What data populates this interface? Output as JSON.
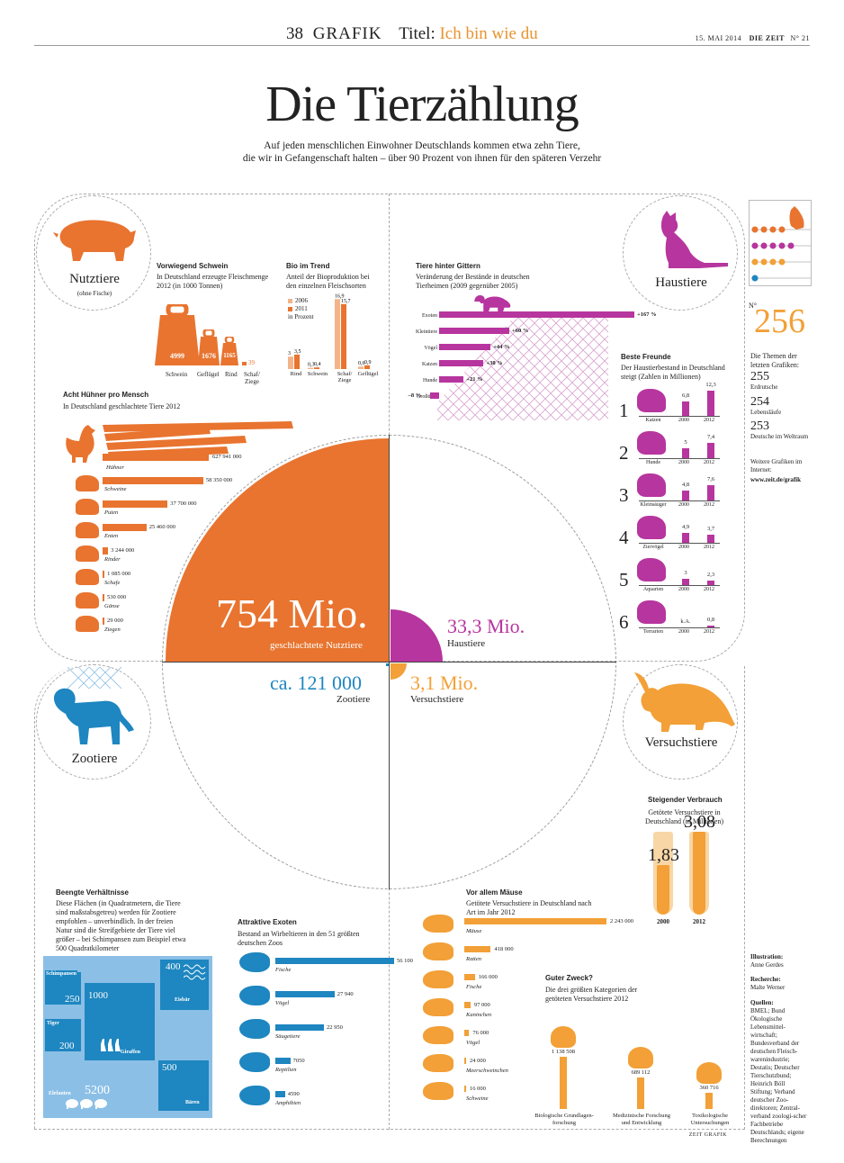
{
  "header": {
    "page_no": "38",
    "section": "GRAFIK",
    "title_prefix": "Titel:",
    "title_highlight": "Ich bin wie du",
    "date": "15. MAI 2014",
    "paper": "DIE ZEIT",
    "issue": "N° 21"
  },
  "headline": "Die Tierzählung",
  "subtitle": [
    "Auf jeden menschlichen Einwohner Deutschlands kommen etwa zehn Tiere,",
    "die wir in Gefangenschaft halten – über 90 Prozent von ihnen für den späteren Verzehr"
  ],
  "colors": {
    "orange": "#e8742f",
    "magenta": "#b7359e",
    "blue": "#1e86c0",
    "amber": "#f2a037",
    "light_blue": "#8bbfe6"
  },
  "nutztiere": {
    "label": "Nutztiere",
    "note": "(ohne Fische)",
    "big_value": "754 Mio.",
    "big_caption": "geschlachtete Nutztiere"
  },
  "haustiere": {
    "label": "Haustiere",
    "big_value": "33,3 Mio.",
    "big_caption": "Haustiere"
  },
  "zootiere": {
    "label": "Zootiere",
    "big_value": "ca. 121 000",
    "big_caption": "Zootiere"
  },
  "versuchstiere": {
    "label": "Versuchstiere",
    "big_value": "3,1 Mio.",
    "big_caption": "Versuchstiere"
  },
  "schwein": {
    "title": "Vorwiegend Schwein",
    "desc": "In Deutschland erzeugte Fleischmenge 2012 (in 1000 Tonnen)",
    "items": [
      {
        "label": "Schwein",
        "value": "4999"
      },
      {
        "label": "Geflügel",
        "value": "1676"
      },
      {
        "label": "Rind",
        "value": "1165"
      },
      {
        "label": "Schaf/ Ziege",
        "value": "39"
      }
    ]
  },
  "bio": {
    "title": "Bio im Trend",
    "desc": "Anteil der Bioproduktion bei den einzelnen Fleischsorten",
    "legend": [
      "2006",
      "2011",
      "in Prozent"
    ],
    "groups": [
      {
        "label": "Rind",
        "v2006": "3",
        "v2011": "3,5",
        "a": 3,
        "b": 3.5
      },
      {
        "label": "Schwein",
        "v2006": "0,3",
        "v2011": "0,4",
        "a": 0.3,
        "b": 0.4
      },
      {
        "label": "Schaf/ Ziege",
        "v2006": "16,9",
        "v2011": "15,7",
        "a": 16.9,
        "b": 15.7
      },
      {
        "label": "Geflügel",
        "v2006": "0,6",
        "v2011": "0,9",
        "a": 0.6,
        "b": 0.9
      }
    ]
  },
  "gitter": {
    "title": "Tiere hinter Gittern",
    "desc": "Veränderung der Bestände in deutschen Tierheimen (2009 gegenüber 2005)",
    "rows": [
      {
        "label": "Exoten",
        "value": "+167 %",
        "pct": 167
      },
      {
        "label": "Kleintiere",
        "value": "+60 %",
        "pct": 60
      },
      {
        "label": "Vögel",
        "value": "+44 %",
        "pct": 44
      },
      {
        "label": "Katzen",
        "value": "+38 %",
        "pct": 38
      },
      {
        "label": "Hunde",
        "value": "+21 %",
        "pct": 21
      },
      {
        "label": "Großtiere",
        "value": "–8 %",
        "pct": -8
      }
    ]
  },
  "huehner": {
    "title": "Acht Hühner pro Mensch",
    "desc": "In Deutschland geschlachtete Tiere 2012",
    "rows": [
      {
        "label": "Hühner",
        "value": "627 941 000",
        "n": 627941000
      },
      {
        "label": "Schweine",
        "value": "58 350 000",
        "n": 58350000
      },
      {
        "label": "Puten",
        "value": "37 700 000",
        "n": 37700000
      },
      {
        "label": "Enten",
        "value": "25 460 000",
        "n": 25460000
      },
      {
        "label": "Rinder",
        "value": "3 244 000",
        "n": 3244000
      },
      {
        "label": "Schafe",
        "value": "1 085 000",
        "n": 1085000
      },
      {
        "label": "Gänse",
        "value": "530 000",
        "n": 530000
      },
      {
        "label": "Ziegen",
        "value": "29 000",
        "n": 29000
      }
    ]
  },
  "freunde": {
    "title": "Beste Freunde",
    "desc": "Der Haustierbestand in Deutschland steigt (Zahlen in Millionen)",
    "years": [
      "2000",
      "2012"
    ],
    "rows": [
      {
        "rank": "1",
        "label": "Katzen",
        "v2000": "6,8",
        "v2012": "12,3",
        "a": 6.8,
        "b": 12.3
      },
      {
        "rank": "2",
        "label": "Hunde",
        "v2000": "5",
        "v2012": "7,4",
        "a": 5,
        "b": 7.4
      },
      {
        "rank": "3",
        "label": "Kleinsäuger",
        "v2000": "4,8",
        "v2012": "7,6",
        "a": 4.8,
        "b": 7.6
      },
      {
        "rank": "4",
        "label": "Ziervögel",
        "v2000": "4,9",
        "v2012": "3,7",
        "a": 4.9,
        "b": 3.7
      },
      {
        "rank": "5",
        "label": "Aquarien",
        "v2000": "3",
        "v2012": "2,3",
        "a": 3,
        "b": 2.3
      },
      {
        "rank": "6",
        "label": "Terrarien",
        "v2000": "k.A.",
        "v2012": "0,8",
        "a": 0,
        "b": 0.8
      }
    ]
  },
  "sidebar": {
    "no_sign": "N°",
    "number": "256",
    "intro": "Die Themen der letzten Grafiken:",
    "items": [
      {
        "n": "255",
        "t": "Erdrutsche"
      },
      {
        "n": "254",
        "t": "Lebensläufe"
      },
      {
        "n": "253",
        "t": "Deutsche im Weltraum"
      }
    ],
    "more": "Weitere Grafiken im Internet:",
    "url": "www.zeit.de/grafik",
    "illu_h": "Illustration:",
    "illu": "Anne Gerdes",
    "rech_h": "Recherche:",
    "rech": "Malte Werner",
    "quellen_h": "Quellen:",
    "quellen": "BMEL; Bund Ökologische Lebensmittel-wirtschaft; Bundesverband der deutschen Fleisch-warenindustrie; Destatis; Deutscher Tierschutzbund; Heinrich Böll Stiftung; Verband deutscher Zoo-direktoren; Zentral-verband zoologi-scher Fachbetriebe Deutschlands; eigene Berechnungen"
  },
  "verbrauch": {
    "title": "Steigender Verbrauch",
    "desc": "Getötete Versuchstiere in Deutschland (in Millionen)",
    "items": [
      {
        "year": "2000",
        "value": "1,83",
        "n": 1.83
      },
      {
        "year": "2012",
        "value": "3,08",
        "n": 3.08
      }
    ]
  },
  "verhaeltnisse": {
    "title": "Beengte Verhältnisse",
    "desc": "Diese Flächen (in Quadratmetern, die Tiere sind maßstabsgetreu) werden für Zootiere empfohlen – unverbindlich. In der freien Natur sind die Streifgebiete der Tiere viel größer – bei Schimpansen zum Beispiel etwa 500 Quadratkilometer",
    "areas": [
      {
        "label": "Schimpansen",
        "value": "250"
      },
      {
        "label": "Giraffen",
        "value": "1000"
      },
      {
        "label": "Eisbär",
        "value": "400"
      },
      {
        "label": "Tiger",
        "value": "200"
      },
      {
        "label": "Bären",
        "value": "500"
      },
      {
        "label": "Elefanten",
        "value": "5200"
      }
    ]
  },
  "exoten": {
    "title": "Attraktive Exoten",
    "desc": "Bestand an Wirbeltieren in den 51 größten deutschen Zoos",
    "rows": [
      {
        "label": "Fische",
        "value": "56 100",
        "n": 56100
      },
      {
        "label": "Vögel",
        "value": "27 940",
        "n": 27940
      },
      {
        "label": "Säugetiere",
        "value": "22 950",
        "n": 22950
      },
      {
        "label": "Reptilien",
        "value": "7050",
        "n": 7050
      },
      {
        "label": "Amphibien",
        "value": "4590",
        "n": 4590
      }
    ]
  },
  "maeuse": {
    "title": "Vor allem Mäuse",
    "desc": "Getötete Versuchstiere in Deutschland nach Art im Jahr 2012",
    "rows": [
      {
        "label": "Mäuse",
        "value": "2 243 000",
        "n": 2243000
      },
      {
        "label": "Ratten",
        "value": "418 000",
        "n": 418000
      },
      {
        "label": "Fische",
        "value": "166 000",
        "n": 166000
      },
      {
        "label": "Kaninchen",
        "value": "97 000",
        "n": 97000
      },
      {
        "label": "Vögel",
        "value": "76 000",
        "n": 76000
      },
      {
        "label": "Meerschweinchen",
        "value": "24 000",
        "n": 24000
      },
      {
        "label": "Schweine",
        "value": "16 000",
        "n": 16000
      }
    ]
  },
  "zweck": {
    "title": "Guter Zweck?",
    "desc": "Die drei größten Kategorien der getöteten Versuchstiere 2012",
    "items": [
      {
        "label": "Biologische Grundlagen-forschung",
        "value": "1 138 508",
        "n": 1138508
      },
      {
        "label": "Medizinische Forschung und Entwicklung",
        "value": "689 112",
        "n": 689112
      },
      {
        "label": "Toxikologische Untersuchungen",
        "value": "360 716",
        "n": 360716
      }
    ]
  },
  "footer_credit": "ZEIT GRAFIK"
}
